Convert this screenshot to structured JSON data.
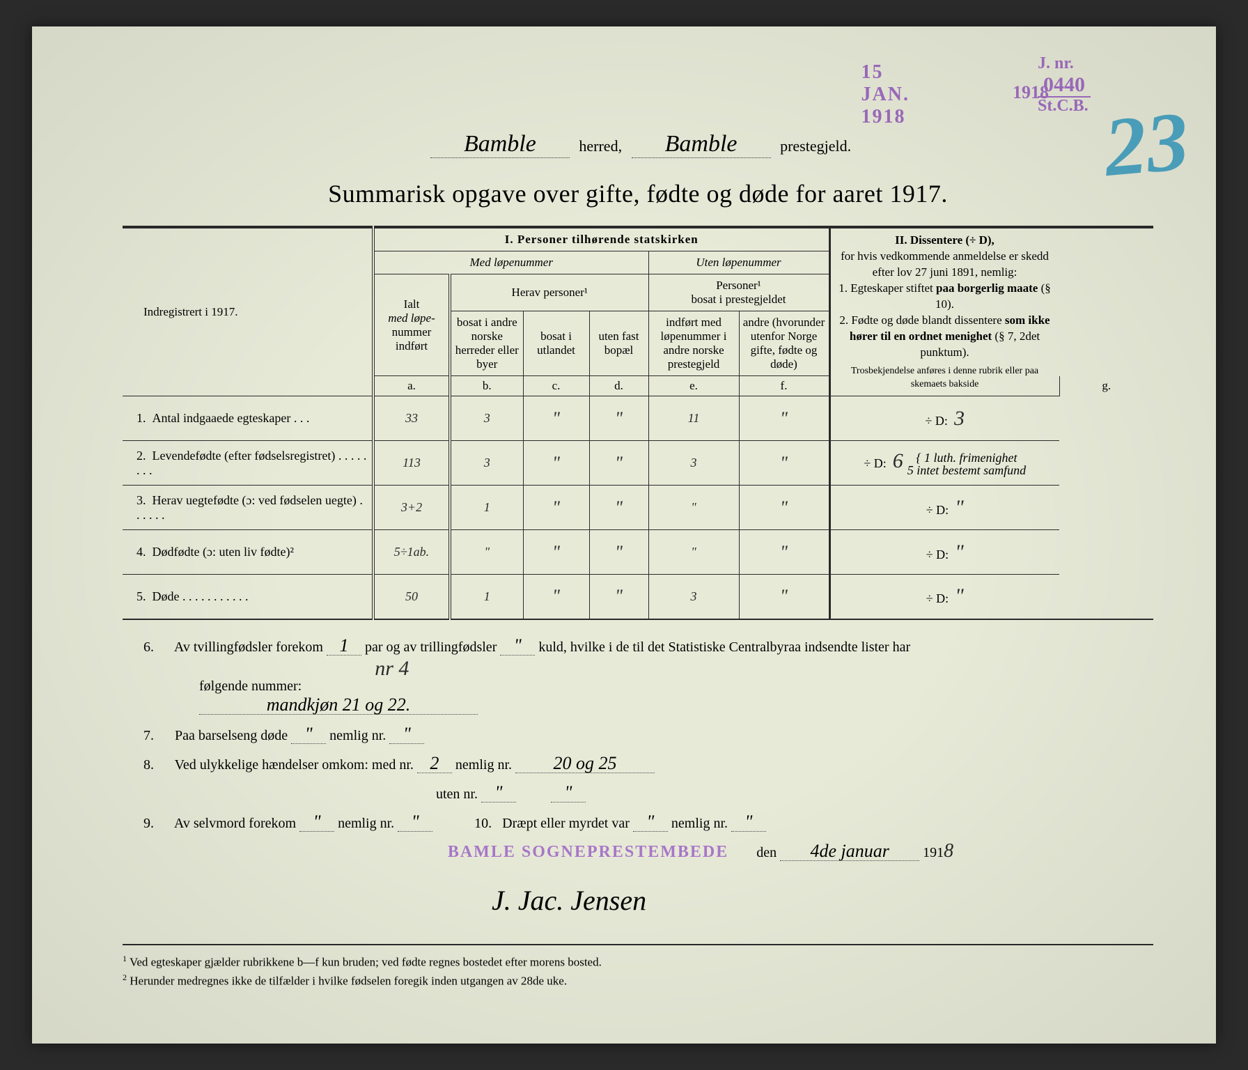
{
  "stamps": {
    "date": "15 JAN. 1918",
    "jnr_prefix": "J. nr.",
    "jnr_num": "0440",
    "jnr_suffix": "St.C.B.",
    "year_below": "1918",
    "big_number": "23"
  },
  "header": {
    "herred_value": "Bamble",
    "herred_label": "herred,",
    "prestegjeld_value": "Bamble",
    "prestegjeld_label": "prestegjeld."
  },
  "title": "Summarisk opgave over gifte, fødte og døde for aaret 1917.",
  "table_headers": {
    "left_label": "Indregistrert i 1917.",
    "section_i": "I.  Personer tilhørende statskirken",
    "med_lope": "Med løpenummer",
    "uten_lope": "Uten løpenummer",
    "herav_personer": "Herav personer¹",
    "personer_bosat": "Personer¹\nbosat i prestegjeldet",
    "col_a_1": "Ialt",
    "col_a_2": "med løpe-",
    "col_a_3": "nummer",
    "col_a_4": "indført",
    "col_b": "bosat i andre norske herreder eller byer",
    "col_c": "bosat i utlandet",
    "col_d": "uten fast bopæl",
    "col_e": "indført med løpenummer i andre norske prestegjeld",
    "col_f": "andre (hvorunder utenfor Norge gifte, fødte og døde)",
    "letters": {
      "a": "a.",
      "b": "b.",
      "c": "c.",
      "d": "d.",
      "e": "e.",
      "f": "f.",
      "g": "g."
    },
    "section_ii_title": "II.  Dissentere (÷ D),",
    "section_ii_body": "for hvis vedkommende anmeldelse er skedd efter lov 27 juni 1891, nemlig:\n1. Egteskaper stiftet paa borgerlig maate (§ 10).\n2. Fødte og døde blandt dissentere som ikke hører til en ordnet menighet (§ 7, 2det punktum).",
    "section_ii_foot": "Trosbekjendelse anføres i denne rubrik eller paa skemaets bakside"
  },
  "rows": [
    {
      "n": "1.",
      "label": "Antal indgaaede egteskaper . . .",
      "a": "33",
      "b": "3",
      "c": "\"",
      "d": "\"",
      "e": "11",
      "f": "\"",
      "g_prefix": "÷ D:",
      "g": "3"
    },
    {
      "n": "2.",
      "label": "Levendefødte (efter fødselsregistret) . . . . . . . .",
      "a": "113",
      "b": "3",
      "c": "\"",
      "d": "\"",
      "e": "3",
      "f": "\"",
      "g_prefix": "÷ D:",
      "g": "6",
      "g_note": "1 luth. frimenighet\n5 intet bestemt samfund"
    },
    {
      "n": "3.",
      "label": "Herav uegtefødte (ɔ: ved fødselen uegte) . . . . . .",
      "a": "3+2",
      "b": "1",
      "c": "\"",
      "d": "\"",
      "e": "\"",
      "f": "\"",
      "g_prefix": "÷ D:",
      "g": "\""
    },
    {
      "n": "4.",
      "label": "Dødfødte (ɔ: uten liv fødte)²",
      "a": "5÷1ab.",
      "b": "\"",
      "c": "\"",
      "d": "\"",
      "e": "\"",
      "f": "\"",
      "g_prefix": "÷ D:",
      "g": "\""
    },
    {
      "n": "5.",
      "label": "Døde . . . . . . . . . . .",
      "a": "50",
      "b": "1",
      "c": "\"",
      "d": "\"",
      "e": "3",
      "f": "\"",
      "g_prefix": "÷ D:",
      "g": "\""
    }
  ],
  "lower": {
    "l6a": "Av tvillingfødsler forekom",
    "l6_v1": "1",
    "l6b": "par og av trillingfødsler",
    "l6_v2": "\"",
    "l6c": "kuld, hvilke i de til det Statistiske Centralbyraa indsendte lister har",
    "l6d": "følgende nummer:",
    "l6_idx_hand": "nr 4",
    "l6_names": "mandkjøn 21 og 22.",
    "l7": "Paa barselseng døde",
    "l7_v1": "\"",
    "l7b": "nemlig nr.",
    "l7_v2": "\"",
    "l8": "Ved ulykkelige hændelser omkom:  med nr.",
    "l8_v1": "2",
    "l8b": "nemlig nr.",
    "l8_v2": "20 og 25",
    "l8c": "uten nr.",
    "l8_v3": "\"",
    "l8_v4": "\"",
    "l9": "Av selvmord forekom",
    "l9_v1": "\"",
    "l9b": "nemlig nr.",
    "l9_v2": "\"",
    "l10": "Dræpt eller myrdet var",
    "l10_v1": "\"",
    "l10b": "nemlig nr.",
    "l10_v2": "\"",
    "date_label": "den",
    "date_val": "4de januar",
    "year_prefix": "191",
    "year_suffix": "8",
    "office_stamp": "BAMLE SOGNEPRESTEMBEDE",
    "signature": "J. Jac. Jensen"
  },
  "footnotes": {
    "f1": "Ved egteskaper gjælder rubrikkene b—f kun bruden; ved fødte regnes bostedet efter morens bosted.",
    "f2": "Herunder medregnes ikke de tilfælder i hvilke fødselen foregik inden utgangen av 28de uke."
  }
}
